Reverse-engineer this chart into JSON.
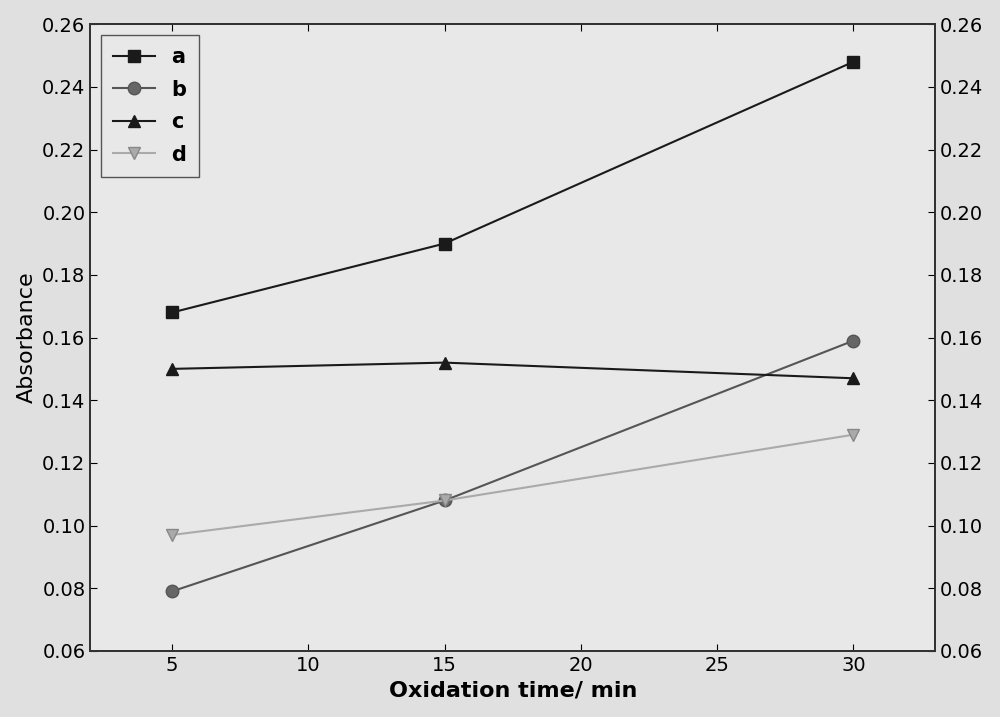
{
  "x": [
    5,
    15,
    30
  ],
  "series_order": [
    "a",
    "b",
    "c",
    "d"
  ],
  "series": {
    "a": {
      "y": [
        0.168,
        0.19,
        0.248
      ],
      "color": "#1a1a1a",
      "marker": "s",
      "marker_facecolor": "#1a1a1a",
      "marker_edgecolor": "#1a1a1a",
      "label": "a",
      "linewidth": 1.5,
      "markersize": 9
    },
    "b": {
      "y": [
        0.079,
        0.108,
        0.159
      ],
      "color": "#555555",
      "marker": "o",
      "marker_facecolor": "#666666",
      "marker_edgecolor": "#555555",
      "label": "b",
      "linewidth": 1.5,
      "markersize": 9
    },
    "c": {
      "y": [
        0.15,
        0.152,
        0.147
      ],
      "color": "#1a1a1a",
      "marker": "^",
      "marker_facecolor": "#1a1a1a",
      "marker_edgecolor": "#1a1a1a",
      "label": "c",
      "linewidth": 1.5,
      "markersize": 9
    },
    "d": {
      "y": [
        0.097,
        0.108,
        0.129
      ],
      "color": "#aaaaaa",
      "marker": "v",
      "marker_facecolor": "#aaaaaa",
      "marker_edgecolor": "#888888",
      "label": "d",
      "linewidth": 1.5,
      "markersize": 9
    }
  },
  "xlim": [
    2,
    33
  ],
  "ylim": [
    0.06,
    0.26
  ],
  "xlabel": "Oxidation time/ min",
  "ylabel": "Absorbance",
  "xticks": [
    5,
    10,
    15,
    20,
    25,
    30
  ],
  "yticks": [
    0.06,
    0.08,
    0.1,
    0.12,
    0.14,
    0.16,
    0.18,
    0.2,
    0.22,
    0.24,
    0.26
  ],
  "legend_fontsize": 15,
  "axis_label_fontsize": 16,
  "tick_fontsize": 14,
  "bg_color": "#e0e0e0",
  "plot_bg_color": "#e8e8e8"
}
